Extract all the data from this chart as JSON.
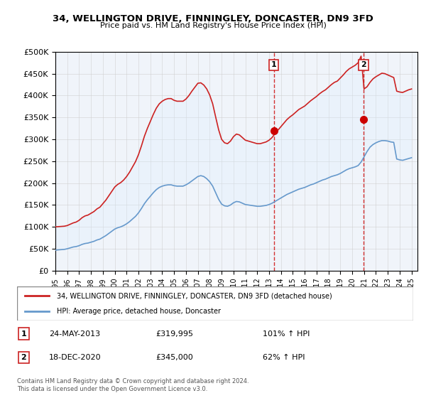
{
  "title": "34, WELLINGTON DRIVE, FINNINGLEY, DONCASTER, DN9 3FD",
  "subtitle": "Price paid vs. HM Land Registry's House Price Index (HPI)",
  "legend_line1": "34, WELLINGTON DRIVE, FINNINGLEY, DONCASTER, DN9 3FD (detached house)",
  "legend_line2": "HPI: Average price, detached house, Doncaster",
  "transaction1_label": "1",
  "transaction1_date": "24-MAY-2013",
  "transaction1_price": "£319,995",
  "transaction1_hpi": "101% ↑ HPI",
  "transaction2_label": "2",
  "transaction2_date": "18-DEC-2020",
  "transaction2_price": "£345,000",
  "transaction2_hpi": "62% ↑ HPI",
  "copyright": "Contains HM Land Registry data © Crown copyright and database right 2024.\nThis data is licensed under the Open Government Licence v3.0.",
  "hpi_color": "#6699cc",
  "house_color": "#cc2222",
  "marker_color": "#cc0000",
  "shade_color": "#ddeeff",
  "background_color": "#f0f4fa",
  "ylim": [
    0,
    500000
  ],
  "yticks": [
    0,
    50000,
    100000,
    150000,
    200000,
    250000,
    300000,
    350000,
    400000,
    450000,
    500000
  ],
  "xlim_start": 1995.0,
  "xlim_end": 2025.5,
  "transaction1_x": 2013.39,
  "transaction1_y": 319995,
  "transaction2_x": 2020.96,
  "transaction2_y": 345000,
  "hpi_x": [
    1995.0,
    1995.25,
    1995.5,
    1995.75,
    1996.0,
    1996.25,
    1996.5,
    1996.75,
    1997.0,
    1997.25,
    1997.5,
    1997.75,
    1998.0,
    1998.25,
    1998.5,
    1998.75,
    1999.0,
    1999.25,
    1999.5,
    1999.75,
    2000.0,
    2000.25,
    2000.5,
    2000.75,
    2001.0,
    2001.25,
    2001.5,
    2001.75,
    2002.0,
    2002.25,
    2002.5,
    2002.75,
    2003.0,
    2003.25,
    2003.5,
    2003.75,
    2004.0,
    2004.25,
    2004.5,
    2004.75,
    2005.0,
    2005.25,
    2005.5,
    2005.75,
    2006.0,
    2006.25,
    2006.5,
    2006.75,
    2007.0,
    2007.25,
    2007.5,
    2007.75,
    2008.0,
    2008.25,
    2008.5,
    2008.75,
    2009.0,
    2009.25,
    2009.5,
    2009.75,
    2010.0,
    2010.25,
    2010.5,
    2010.75,
    2011.0,
    2011.25,
    2011.5,
    2011.75,
    2012.0,
    2012.25,
    2012.5,
    2012.75,
    2013.0,
    2013.25,
    2013.5,
    2013.75,
    2014.0,
    2014.25,
    2014.5,
    2014.75,
    2015.0,
    2015.25,
    2015.5,
    2015.75,
    2016.0,
    2016.25,
    2016.5,
    2016.75,
    2017.0,
    2017.25,
    2017.5,
    2017.75,
    2018.0,
    2018.25,
    2018.5,
    2018.75,
    2019.0,
    2019.25,
    2019.5,
    2019.75,
    2020.0,
    2020.25,
    2020.5,
    2020.75,
    2021.0,
    2021.25,
    2021.5,
    2021.75,
    2022.0,
    2022.25,
    2022.5,
    2022.75,
    2023.0,
    2023.25,
    2023.5,
    2023.75,
    2024.0,
    2024.25,
    2024.5,
    2024.75,
    2025.0
  ],
  "hpi_y": [
    47000,
    47500,
    48000,
    48500,
    50000,
    52000,
    54000,
    55000,
    57000,
    60000,
    62000,
    63000,
    65000,
    67000,
    70000,
    72000,
    76000,
    80000,
    85000,
    90000,
    95000,
    98000,
    100000,
    103000,
    107000,
    112000,
    118000,
    124000,
    132000,
    142000,
    153000,
    162000,
    170000,
    178000,
    185000,
    190000,
    193000,
    195000,
    196000,
    196000,
    194000,
    193000,
    193000,
    193000,
    196000,
    200000,
    205000,
    210000,
    215000,
    217000,
    215000,
    210000,
    203000,
    193000,
    178000,
    163000,
    152000,
    148000,
    147000,
    150000,
    155000,
    158000,
    157000,
    154000,
    151000,
    150000,
    149000,
    148000,
    147000,
    147000,
    148000,
    149000,
    151000,
    154000,
    158000,
    162000,
    166000,
    170000,
    174000,
    177000,
    180000,
    183000,
    186000,
    188000,
    190000,
    193000,
    196000,
    198000,
    201000,
    204000,
    207000,
    209000,
    212000,
    215000,
    217000,
    219000,
    222000,
    226000,
    230000,
    233000,
    235000,
    237000,
    240000,
    248000,
    260000,
    272000,
    282000,
    288000,
    292000,
    295000,
    297000,
    297000,
    296000,
    294000,
    293000,
    255000,
    253000,
    252000,
    254000,
    256000,
    258000
  ],
  "house_x": [
    1995.0,
    1995.25,
    1995.5,
    1995.75,
    1996.0,
    1996.25,
    1996.5,
    1996.75,
    1997.0,
    1997.25,
    1997.5,
    1997.75,
    1998.0,
    1998.25,
    1998.5,
    1998.75,
    1999.0,
    1999.25,
    1999.5,
    1999.75,
    2000.0,
    2000.25,
    2000.5,
    2000.75,
    2001.0,
    2001.25,
    2001.5,
    2001.75,
    2002.0,
    2002.25,
    2002.5,
    2002.75,
    2003.0,
    2003.25,
    2003.5,
    2003.75,
    2004.0,
    2004.25,
    2004.5,
    2004.75,
    2005.0,
    2005.25,
    2005.5,
    2005.75,
    2006.0,
    2006.25,
    2006.5,
    2006.75,
    2007.0,
    2007.25,
    2007.5,
    2007.75,
    2008.0,
    2008.25,
    2008.5,
    2008.75,
    2009.0,
    2009.25,
    2009.5,
    2009.75,
    2010.0,
    2010.25,
    2010.5,
    2010.75,
    2011.0,
    2011.25,
    2011.5,
    2011.75,
    2012.0,
    2012.25,
    2012.5,
    2012.75,
    2013.0,
    2013.25,
    2013.5,
    2013.75,
    2014.0,
    2014.25,
    2014.5,
    2014.75,
    2015.0,
    2015.25,
    2015.5,
    2015.75,
    2016.0,
    2016.25,
    2016.5,
    2016.75,
    2017.0,
    2017.25,
    2017.5,
    2017.75,
    2018.0,
    2018.25,
    2018.5,
    2018.75,
    2019.0,
    2019.25,
    2019.5,
    2019.75,
    2020.0,
    2020.25,
    2020.5,
    2020.75,
    2021.0,
    2021.25,
    2021.5,
    2021.75,
    2022.0,
    2022.25,
    2022.5,
    2022.75,
    2023.0,
    2023.25,
    2023.5,
    2023.75,
    2024.0,
    2024.25,
    2024.5,
    2024.75,
    2025.0
  ],
  "house_y": [
    100000,
    100500,
    101000,
    101500,
    103000,
    106000,
    109000,
    111000,
    115000,
    121000,
    125000,
    127000,
    131000,
    135000,
    141000,
    145000,
    153000,
    161000,
    171000,
    181000,
    191000,
    197000,
    201000,
    207000,
    215000,
    225000,
    237000,
    249000,
    265000,
    285000,
    307000,
    325000,
    341000,
    357000,
    371000,
    381000,
    387000,
    391000,
    393000,
    393000,
    389000,
    387000,
    387000,
    387000,
    392000,
    400000,
    410000,
    419000,
    428000,
    429000,
    424000,
    415000,
    401000,
    381000,
    351000,
    322000,
    300000,
    292000,
    290000,
    296000,
    306000,
    312000,
    310000,
    304000,
    298000,
    296000,
    294000,
    292000,
    290000,
    290000,
    292000,
    294000,
    298000,
    304000,
    313000,
    321000,
    329000,
    337000,
    345000,
    351000,
    356000,
    362000,
    368000,
    372000,
    376000,
    382000,
    388000,
    393000,
    398000,
    404000,
    409000,
    413000,
    419000,
    425000,
    430000,
    433000,
    440000,
    447000,
    455000,
    461000,
    465000,
    469000,
    475000,
    490000,
    415000,
    420000,
    430000,
    438000,
    443000,
    447000,
    451000,
    450000,
    447000,
    444000,
    441000,
    410000,
    408000,
    407000,
    410000,
    413000,
    415000
  ]
}
